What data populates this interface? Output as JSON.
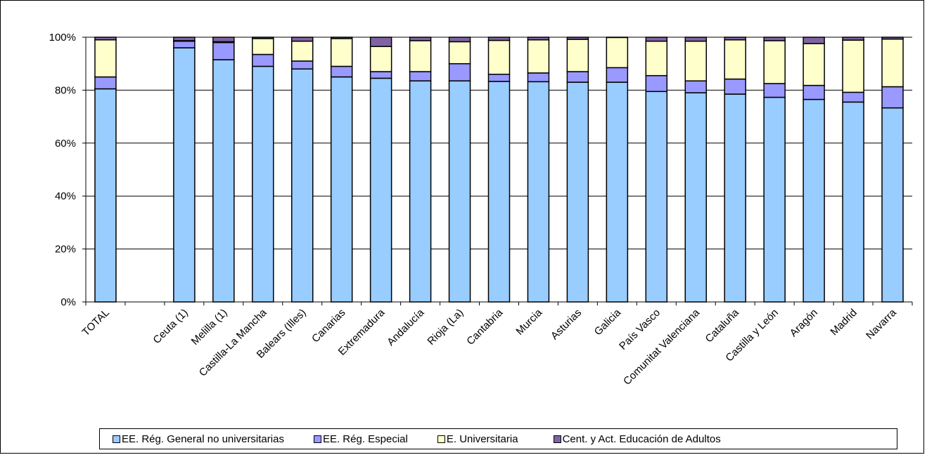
{
  "chart_data": {
    "type": "bar",
    "stacked": true,
    "percent": true,
    "categories": [
      "TOTAL",
      "",
      "Ceuta (1)",
      "Melilla (1)",
      "Castilla-La Mancha",
      "Balears (Illes)",
      "Canarias",
      "Extremadura",
      "Andalucía",
      "Rioja (La)",
      "Cantabria",
      "Murcia",
      "Asturias",
      "Galicia",
      "País Vasco",
      "Comunitat Valenciana",
      "Cataluña",
      "Castilla y León",
      "Aragón",
      "Madrid",
      "Navarra"
    ],
    "series": [
      {
        "name": "EE. Rég. General no universitarias",
        "color": "#99ccff",
        "values": [
          80.5,
          null,
          96,
          91.5,
          89,
          88,
          85,
          84.5,
          83.5,
          83.5,
          83.3,
          83.2,
          83,
          83,
          79.5,
          79,
          78.5,
          77.3,
          76.5,
          75.5,
          73.3
        ]
      },
      {
        "name": "EE. Rég. Especial",
        "color": "#9999ff",
        "values": [
          4.5,
          null,
          2.5,
          6.5,
          4.5,
          3,
          4,
          2.5,
          3.5,
          6.5,
          2.7,
          3.3,
          4,
          5.5,
          6,
          4.5,
          5.7,
          5.2,
          5.3,
          3.7,
          8
        ]
      },
      {
        "name": "E. Universitaria",
        "color": "#ffffcc",
        "values": [
          14,
          null,
          0.2,
          0.3,
          6,
          7.5,
          10.5,
          9.5,
          11.7,
          8.3,
          12.8,
          12.5,
          12.2,
          11.4,
          13,
          15,
          14.8,
          16.2,
          15.8,
          19.7,
          18
        ]
      },
      {
        "name": "Cent. y Act. Educación de Adultos",
        "color": "#8064a2",
        "values": [
          1,
          null,
          1.3,
          1.7,
          0.5,
          1.5,
          0.5,
          3.5,
          1.3,
          1.7,
          1.2,
          1,
          0.8,
          0.1,
          1.5,
          1.5,
          1,
          1.3,
          2.4,
          1.1,
          0.7
        ]
      }
    ],
    "ylim": [
      0,
      100
    ],
    "yticks": [
      "0%",
      "20%",
      "40%",
      "60%",
      "80%",
      "100%"
    ],
    "grid": true,
    "legend_position": "bottom",
    "plot_background": "#ffffff"
  }
}
